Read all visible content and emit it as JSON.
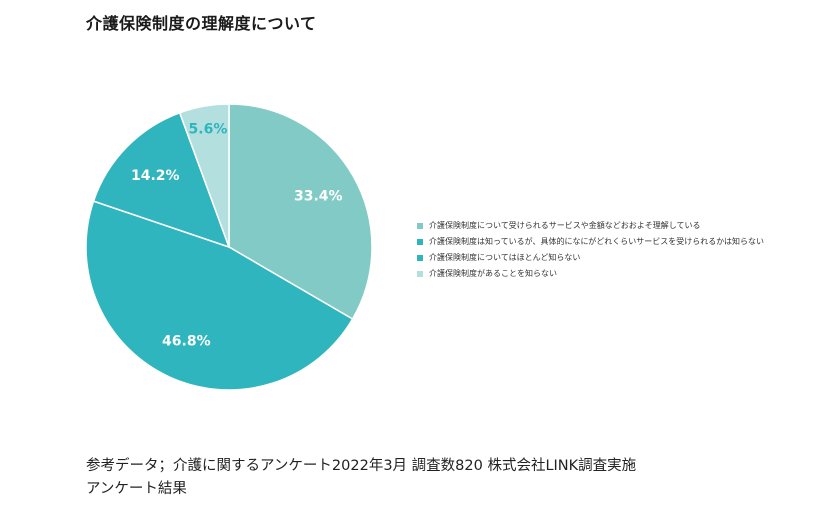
{
  "title": "介護保険制度の理解度について",
  "chart_data": {
    "type": "pie",
    "title": "介護保険制度の理解度について",
    "start": "12 o'clock, clockwise",
    "slices": [
      {
        "label": "介護保険制度について受けられるサービスや金額などおおよそ理解している",
        "value": 33.4,
        "display": "33.4%",
        "color": "#81cac6",
        "label_color": "#ffffff"
      },
      {
        "label": "介護保険制度は知っているが、具体的になにがどれくらいサービスを受けられるかは知らない",
        "value": 46.8,
        "display": "46.8%",
        "color": "#2fb5be",
        "label_color": "#ffffff"
      },
      {
        "label": "介護保険制度についてはほとんど知らない",
        "value": 14.2,
        "display": "14.2%",
        "color": "#30b4bd",
        "label_color": "#ffffff"
      },
      {
        "label": "介護保険制度があることを知らない",
        "value": 5.6,
        "display": "5.6%",
        "color": "#b3e0df",
        "label_color": "#2fb5be"
      }
    ],
    "legend_position": "right",
    "separator_color": "#ffffff"
  },
  "footnote": {
    "line1": "参考データ；介護に関するアンケート2022年3月 調査数820  株式会社LINK調査実施",
    "line2": "アンケート結果"
  }
}
